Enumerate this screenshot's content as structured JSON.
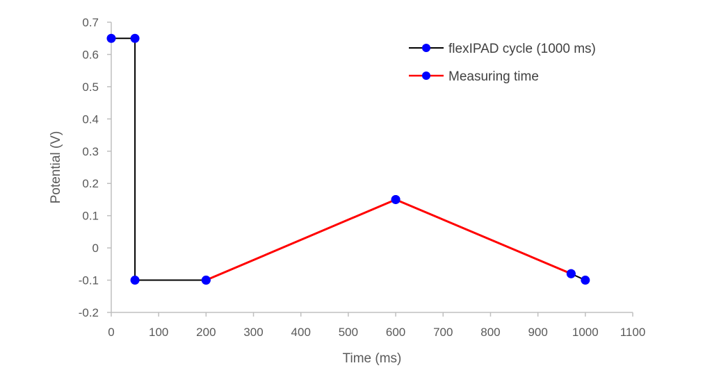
{
  "chart_data": {
    "type": "line",
    "title": "",
    "xlabel": "Time (ms)",
    "ylabel": "Potential (V)",
    "xlim": [
      0,
      1100
    ],
    "ylim": [
      -0.2,
      0.7
    ],
    "x_ticks": [
      0,
      100,
      200,
      300,
      400,
      500,
      600,
      700,
      800,
      900,
      1000,
      1100
    ],
    "x_tick_labels": [
      "0",
      "100",
      "200",
      "300",
      "400",
      "500",
      "600",
      "700",
      "800",
      "900",
      "1000",
      "1100"
    ],
    "y_ticks": [
      -0.2,
      -0.1,
      0,
      0.1,
      0.2,
      0.3,
      0.4,
      0.5,
      0.6,
      0.7
    ],
    "y_tick_labels": [
      "-0.2",
      "-0.1",
      "0",
      "0.1",
      "0.2",
      "0.3",
      "0.4",
      "0.5",
      "0.6",
      "0.7"
    ],
    "grid": false,
    "legend_position": "top-right",
    "series": [
      {
        "name": "flexIPAD cycle (1000 ms)",
        "color": "#000000",
        "marker_color": "#0000FF",
        "x": [
          0,
          50,
          50,
          200,
          600,
          970,
          1000
        ],
        "y": [
          0.65,
          0.65,
          -0.1,
          -0.1,
          0.15,
          -0.08,
          -0.1
        ]
      },
      {
        "name": "Measuring time",
        "color": "#FF0000",
        "marker_color": "#0000FF",
        "x": [
          200,
          600,
          970
        ],
        "y": [
          -0.1,
          0.15,
          -0.08
        ]
      }
    ]
  }
}
